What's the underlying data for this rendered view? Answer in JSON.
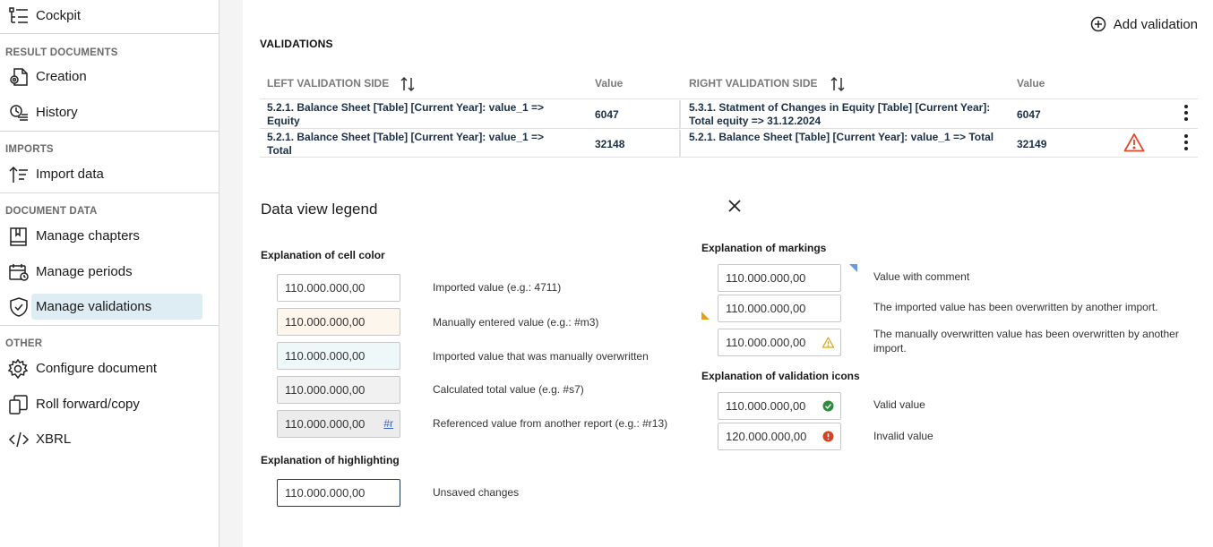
{
  "sidebar": {
    "top_item": {
      "label": "Cockpit",
      "icon": "cockpit-icon"
    },
    "sections": [
      {
        "title": "RESULT DOCUMENTS",
        "items": [
          {
            "label": "Creation",
            "icon": "document-gear-icon"
          },
          {
            "label": "History",
            "icon": "history-icon"
          }
        ]
      },
      {
        "title": "IMPORTS",
        "items": [
          {
            "label": "Import data",
            "icon": "import-icon"
          }
        ]
      },
      {
        "title": "DOCUMENT DATA",
        "items": [
          {
            "label": "Manage chapters",
            "icon": "book-icon"
          },
          {
            "label": "Manage periods",
            "icon": "calendar-icon"
          },
          {
            "label": "Manage validations",
            "icon": "shield-check-icon",
            "active": true
          }
        ]
      },
      {
        "title": "OTHER",
        "items": [
          {
            "label": "Configure document",
            "icon": "gear-icon"
          },
          {
            "label": "Roll forward/copy",
            "icon": "copy-icon"
          },
          {
            "label": "XBRL",
            "icon": "code-icon"
          }
        ]
      }
    ]
  },
  "main": {
    "add_validation_label": "Add validation",
    "section_title": "VALIDATIONS",
    "table": {
      "headers": {
        "left_side": "LEFT VALIDATION SIDE",
        "left_value": "Value",
        "right_side": "RIGHT VALIDATION SIDE",
        "right_value": "Value"
      },
      "rows": [
        {
          "left": "5.2.1. Balance Sheet [Table] [Current Year]: value_1 => Equity",
          "left_value": "6047",
          "right": "5.3.1. Statment of Changes in Equity [Table] [Current Year]: Total equity => 31.12.2024",
          "right_value": "6047",
          "warning": false
        },
        {
          "left": "5.2.1. Balance Sheet [Table] [Current Year]: value_1 => Total",
          "left_value": "32148",
          "right": "5.2.1. Balance Sheet [Table] [Current Year]: value_1 => Total",
          "right_value": "32149",
          "warning": true
        }
      ]
    }
  },
  "legend": {
    "title": "Data view legend",
    "cell_color_title": "Explanation of cell color",
    "cell_colors": [
      {
        "value": "110.000.000,00",
        "text": "Imported value (e.g.: 4711)"
      },
      {
        "value": "110.000.000,00",
        "text": "Manually entered value (e.g.: #m3)"
      },
      {
        "value": "110.000.000,00",
        "text": "Imported value that was manually overwritten"
      },
      {
        "value": "110.000.000,00",
        "text": "Calculated total value (e.g. #s7)"
      },
      {
        "value": "110.000.000,00",
        "text": "Referenced value from another report (e.g.: #r13)",
        "tag": "#r"
      }
    ],
    "highlighting_title": "Explanation of highlighting",
    "highlighting": {
      "value": "110.000.000,00",
      "text": "Unsaved changes"
    },
    "markings_title": "Explanation of markings",
    "markings": [
      {
        "value": "110.000.000,00",
        "text": "Value with comment"
      },
      {
        "value": "110.000.000,00",
        "text": "The imported value has been overwritten by another import."
      },
      {
        "value": "110.000.000,00",
        "text": "The manually overwritten value has been overwritten by another import."
      }
    ],
    "validation_icons_title": "Explanation of validation icons",
    "validation_icons": [
      {
        "value": "110.000.000,00",
        "text": "Valid value"
      },
      {
        "value": "120.000.000,00",
        "text": "Invalid value"
      }
    ]
  },
  "colors": {
    "accent_active_bg": "#deedf4",
    "warning": "#e0492a",
    "valid": "#2e8b3e",
    "invalid": "#d9421e",
    "comment_marker": "#6a9ad8",
    "import_marker": "#e0a21a"
  }
}
